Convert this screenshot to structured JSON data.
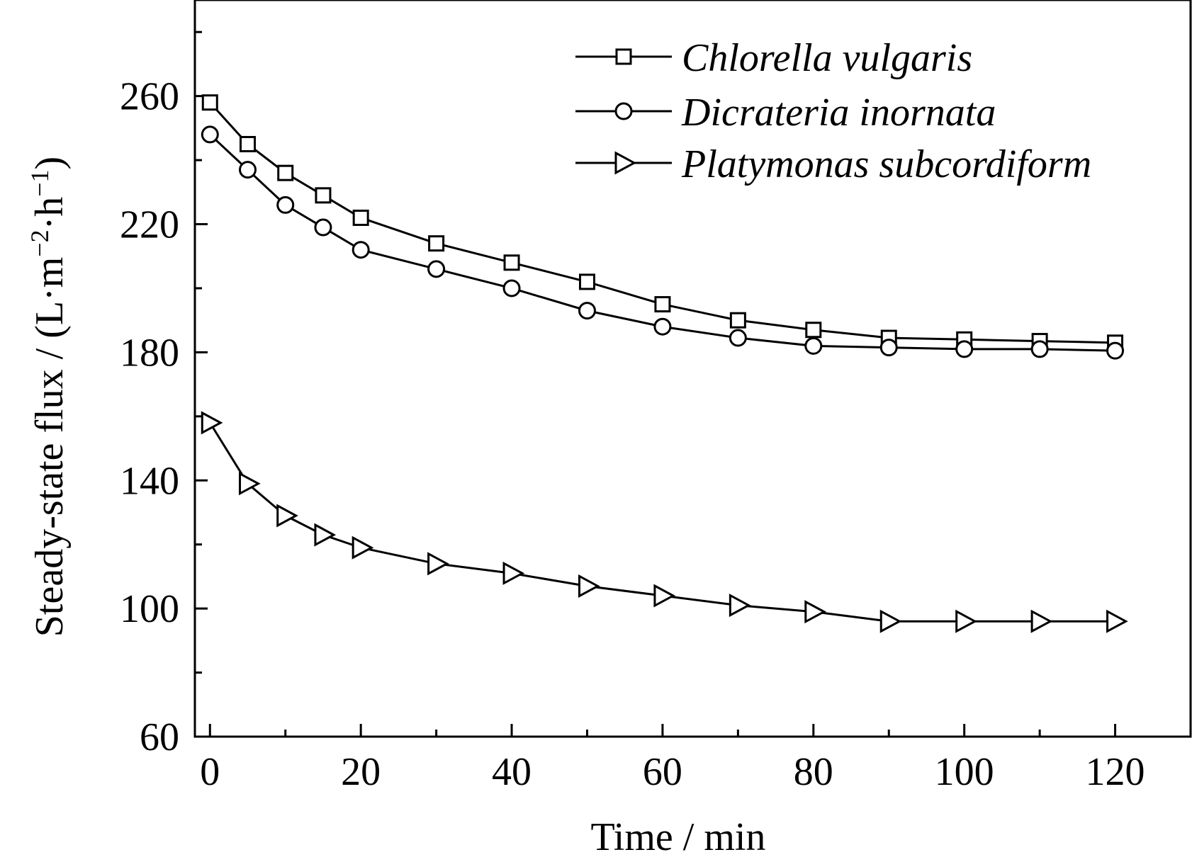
{
  "chart_data": {
    "type": "line",
    "xlabel": "Time / min",
    "ylabel": {
      "main": "Steady-state flux / (L·m",
      "sup1": "−2",
      "mid": "·h",
      "sup2": "−1",
      "end": ")"
    },
    "xlim": [
      -2,
      130
    ],
    "ylim": [
      60,
      290
    ],
    "xticks": [
      0,
      20,
      40,
      60,
      80,
      100,
      120
    ],
    "yticks": [
      60,
      100,
      140,
      180,
      220,
      260
    ],
    "x": [
      0,
      5,
      10,
      15,
      20,
      30,
      40,
      50,
      60,
      70,
      80,
      90,
      100,
      110,
      120
    ],
    "series": [
      {
        "name": "Chlorella vulgaris",
        "marker": "square",
        "values": [
          258,
          245,
          236,
          229,
          222,
          214,
          208,
          202,
          195,
          190,
          187,
          184.5,
          184,
          183.5,
          183
        ]
      },
      {
        "name": "Dicrateria inornata",
        "marker": "circle",
        "values": [
          248,
          237,
          226,
          219,
          212,
          206,
          200,
          193,
          188,
          184.5,
          182,
          181.5,
          181,
          181,
          180.5
        ]
      },
      {
        "name": "Platymonas subcordiform",
        "marker": "triangle-right",
        "values": [
          158,
          139,
          129,
          123,
          119,
          114,
          111,
          107,
          104,
          101,
          99,
          96,
          96,
          96,
          96
        ]
      }
    ],
    "legend_position": "top-right",
    "grid": false
  }
}
